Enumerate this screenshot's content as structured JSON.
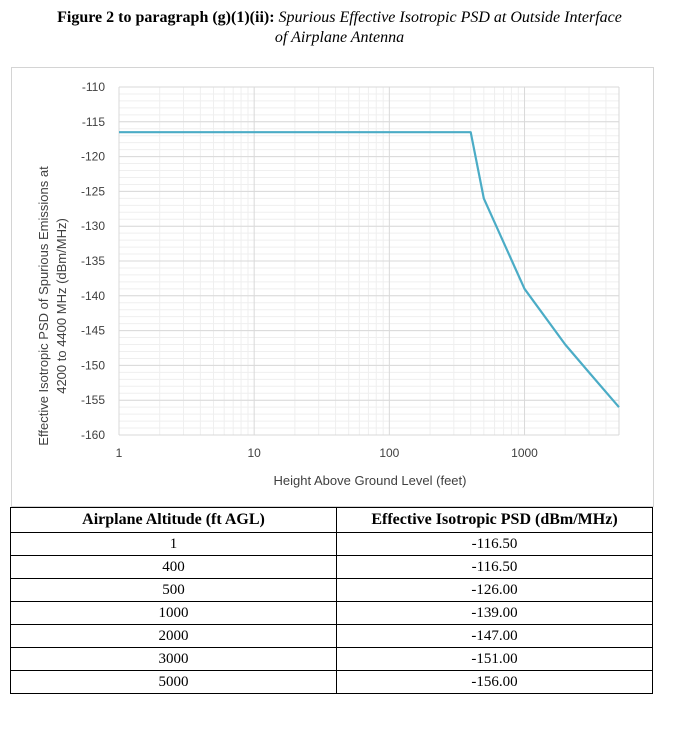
{
  "figure": {
    "label": "Figure 2 to paragraph (g)(1)(ii):",
    "caption_line1": "Spurious Effective Isotropic PSD at Outside Interface",
    "caption_line2": "of Airplane Antenna"
  },
  "chart_data": {
    "type": "line",
    "x_scale": "log",
    "xlabel": "Height Above Ground Level (feet)",
    "ylabel_line1": "Effective Isotropic PSD of Spurious Emissions at",
    "ylabel_line2": "4200 to 4400 MHz (dBm/MHz)",
    "xlim": [
      1,
      5000
    ],
    "ylim": [
      -160,
      -110
    ],
    "x_ticks": [
      1,
      10,
      100,
      1000
    ],
    "x_tick_labels": [
      "1",
      "10",
      "100",
      "1000"
    ],
    "y_ticks": [
      -110,
      -115,
      -120,
      -125,
      -130,
      -135,
      -140,
      -145,
      -150,
      -155,
      -160
    ],
    "y_tick_labels": [
      "-110",
      "-115",
      "-120",
      "-125",
      "-130",
      "-135",
      "-140",
      "-145",
      "-150",
      "-155",
      "-160"
    ],
    "grid": true,
    "series": [
      {
        "x": [
          1,
          400,
          500,
          1000,
          2000,
          3000,
          5000
        ],
        "y": [
          -116.5,
          -116.5,
          -126,
          -139,
          -147,
          -151,
          -156
        ],
        "color": "#4bacc6"
      }
    ]
  },
  "table": {
    "headers": [
      "Airplane Altitude (ft AGL)",
      "Effective Isotropic PSD (dBm/MHz)"
    ],
    "rows": [
      [
        "1",
        "-116.50"
      ],
      [
        "400",
        "-116.50"
      ],
      [
        "500",
        "-126.00"
      ],
      [
        "1000",
        "-139.00"
      ],
      [
        "2000",
        "-147.00"
      ],
      [
        "3000",
        "-151.00"
      ],
      [
        "5000",
        "-156.00"
      ]
    ]
  }
}
